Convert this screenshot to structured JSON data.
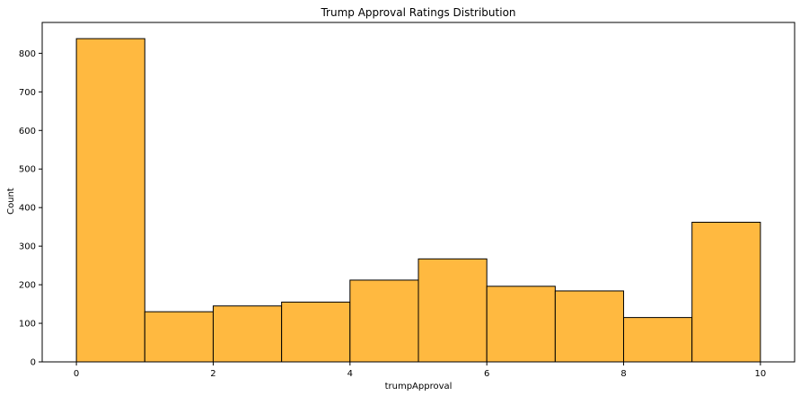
{
  "chart_data": {
    "type": "bar",
    "title": "Trump Approval Ratings Distribution",
    "xlabel": "trumpApproval",
    "ylabel": "Count",
    "bins": [
      {
        "x0": 0,
        "x1": 1,
        "count": 838
      },
      {
        "x0": 1,
        "x1": 2,
        "count": 130
      },
      {
        "x0": 2,
        "x1": 3,
        "count": 145
      },
      {
        "x0": 3,
        "x1": 4,
        "count": 155
      },
      {
        "x0": 4,
        "x1": 5,
        "count": 212
      },
      {
        "x0": 5,
        "x1": 6,
        "count": 267
      },
      {
        "x0": 6,
        "x1": 7,
        "count": 196
      },
      {
        "x0": 7,
        "x1": 8,
        "count": 184
      },
      {
        "x0": 8,
        "x1": 9,
        "count": 115
      },
      {
        "x0": 9,
        "x1": 10,
        "count": 362
      }
    ],
    "xlim": [
      -0.5,
      10.5
    ],
    "ylim": [
      0,
      880
    ],
    "xticks": [
      "0",
      "2",
      "4",
      "6",
      "8",
      "10"
    ],
    "yticks": [
      "0",
      "100",
      "200",
      "300",
      "400",
      "500",
      "600",
      "700",
      "800"
    ],
    "bar_color": "#ffb940",
    "edge_color": "#000000",
    "grid": false
  }
}
